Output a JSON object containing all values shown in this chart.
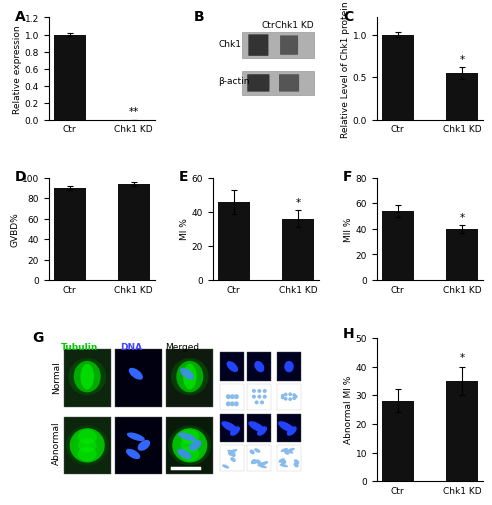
{
  "panel_A": {
    "categories": [
      "Ctr",
      "Chk1 KD"
    ],
    "values": [
      1.0,
      0.0
    ],
    "errors": [
      0.02,
      0.0
    ],
    "ylabel": "Relative expression",
    "ylim": [
      0,
      1.2
    ],
    "yticks": [
      0,
      0.2,
      0.4,
      0.6,
      0.8,
      1.0,
      1.2
    ],
    "significance": {
      "bar_idx": 1,
      "text": "**"
    }
  },
  "panel_C": {
    "categories": [
      "Ctr",
      "Chk1 KD"
    ],
    "values": [
      1.0,
      0.55
    ],
    "errors": [
      0.03,
      0.07
    ],
    "ylabel": "Relative Level of Chk1 protein",
    "ylim": [
      0.0,
      1.2
    ],
    "yticks": [
      0.0,
      0.5,
      1.0
    ],
    "significance": {
      "bar_idx": 1,
      "text": "*"
    }
  },
  "panel_D": {
    "categories": [
      "Ctr",
      "Chk1 KD"
    ],
    "values": [
      90,
      94
    ],
    "errors": [
      2.0,
      2.0
    ],
    "ylabel": "GVBD%",
    "ylim": [
      0,
      100
    ],
    "yticks": [
      0,
      20,
      40,
      60,
      80,
      100
    ],
    "significance": null
  },
  "panel_E": {
    "categories": [
      "Ctr",
      "Chk1 KD"
    ],
    "values": [
      46,
      36
    ],
    "errors": [
      7,
      5
    ],
    "ylabel": "MI %",
    "ylim": [
      0,
      60
    ],
    "yticks": [
      0,
      20,
      40,
      60
    ],
    "significance": {
      "bar_idx": 1,
      "text": "*"
    }
  },
  "panel_F": {
    "categories": [
      "Ctr",
      "Chk1 KD"
    ],
    "values": [
      54,
      40
    ],
    "errors": [
      5,
      3
    ],
    "ylabel": "MII %",
    "ylim": [
      0,
      80
    ],
    "yticks": [
      0,
      20,
      40,
      60,
      80
    ],
    "significance": {
      "bar_idx": 1,
      "text": "*"
    }
  },
  "panel_H": {
    "categories": [
      "Ctr",
      "Chk1 KD"
    ],
    "values": [
      28,
      35
    ],
    "errors": [
      4,
      5
    ],
    "ylabel": "Abnormal MI %",
    "ylim": [
      0,
      50
    ],
    "yticks": [
      0,
      10,
      20,
      30,
      40,
      50
    ],
    "significance": {
      "bar_idx": 1,
      "text": "*"
    }
  },
  "bar_color": "#111111",
  "bar_width": 0.5,
  "label_fontsize": 6.5,
  "tick_fontsize": 6.5,
  "panel_label_fontsize": 10,
  "western_bg_color": "#b0b0b0",
  "western_band_dark": "#333333",
  "western_band_medium": "#555555",
  "western_band_light": "#777777",
  "micro_bg": "#1a3a1a",
  "micro_bg_dark": "#000a00",
  "tubulin_color": "#00dd00",
  "dna_color": "#2222ff",
  "chrom_color": "#88bbee"
}
